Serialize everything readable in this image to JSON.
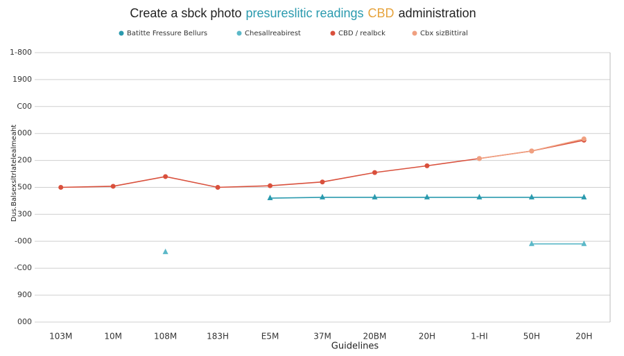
{
  "chart_data": {
    "type": "line",
    "title": [
      "Create a sbck photo",
      "presureslitic readings",
      "CBD",
      "administration"
    ],
    "title_colors": [
      "#222222",
      "#2a9aae",
      "#e6a33c",
      "#222222"
    ],
    "x_label": "Guidelines",
    "y_label": "Dus.Balsexsltrlatelealmeaht",
    "categories": [
      "103M",
      "10M",
      "108M",
      "183H",
      "E5M",
      "37M",
      "20BM",
      "20H",
      "1-HI",
      "50H",
      "20H"
    ],
    "ylim": [
      0,
      10
    ],
    "yticks": [
      {
        "value": 0,
        "label": "000"
      },
      {
        "value": 1,
        "label": "900"
      },
      {
        "value": 2,
        "label": "-C00"
      },
      {
        "value": 3,
        "label": "-000"
      },
      {
        "value": 4,
        "label": "300"
      },
      {
        "value": 5,
        "label": "500"
      },
      {
        "value": 6,
        "label": "200"
      },
      {
        "value": 7,
        "label": "000"
      },
      {
        "value": 8,
        "label": "C00"
      },
      {
        "value": 9,
        "label": "1900"
      },
      {
        "value": 10,
        "label": "1-800"
      }
    ],
    "grid": true,
    "series": [
      {
        "name": "Batitte Fressure Bellurs",
        "color": "#2a9aae",
        "marker": "triangle",
        "values": [
          null,
          null,
          null,
          null,
          4.6,
          4.63,
          4.63,
          4.63,
          4.63,
          4.63,
          4.63
        ]
      },
      {
        "name": "Chesallreabirest",
        "color": "#5bb8c8",
        "marker": "triangle",
        "values": [
          null,
          null,
          2.6,
          null,
          null,
          null,
          null,
          null,
          null,
          2.9,
          2.9
        ]
      },
      {
        "name": "CBD / realbck",
        "color": "#d9503c",
        "marker": "circle",
        "values": [
          5.0,
          5.04,
          5.4,
          5.0,
          5.06,
          5.2,
          5.55,
          5.8,
          6.07,
          6.35,
          6.75
        ]
      },
      {
        "name": "Cbx sizBittiral",
        "color": "#f0a080",
        "marker": "circle",
        "values": [
          null,
          null,
          null,
          null,
          null,
          null,
          null,
          null,
          6.07,
          6.35,
          6.8
        ]
      }
    ]
  }
}
